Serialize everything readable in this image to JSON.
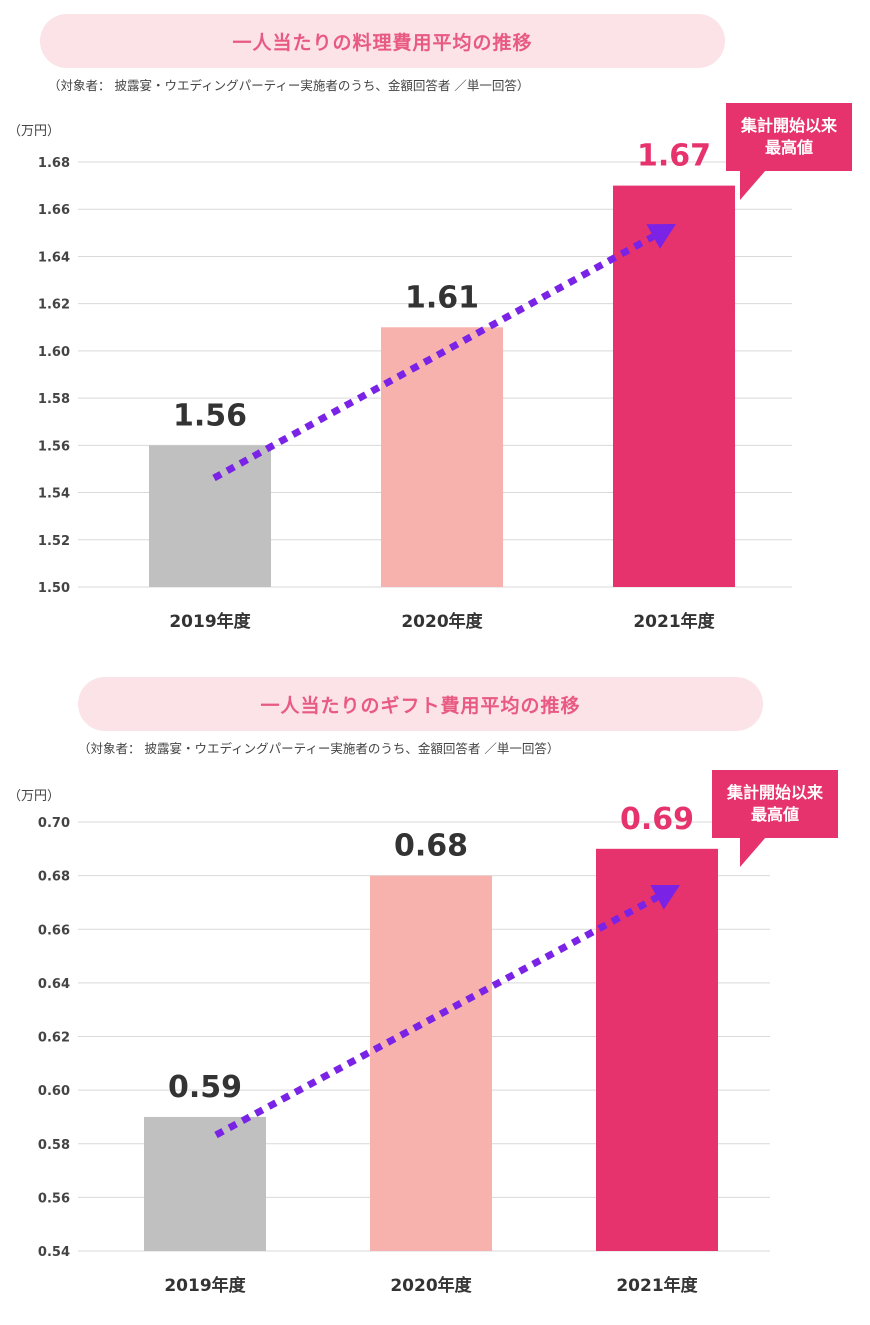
{
  "colors": {
    "title_pill": "#fbe3e7",
    "title_text": "#e85a82",
    "accent": "#e6336e",
    "bar_2019": "#c0c0c0",
    "bar_2020": "#f8b2ae",
    "bar_2021": "#e6336e",
    "arrow": "#7a22e6",
    "grid": "#d9d9d9"
  },
  "chart_data": [
    {
      "type": "bar",
      "title": "一人当たりの料理費用平均の推移",
      "subtitle": "（対象者： 披露宴・ウエディングパーティー実施者のうち、金額回答者 ／単一回答）",
      "unit": "（万円）",
      "categories": [
        "2019年度",
        "2020年度",
        "2021年度"
      ],
      "values": [
        1.56,
        1.61,
        1.67
      ],
      "value_labels": [
        "1.56",
        "1.61",
        "1.67"
      ],
      "ylim": [
        1.5,
        1.68
      ],
      "yticks": [
        "1.50",
        "1.52",
        "1.54",
        "1.56",
        "1.58",
        "1.60",
        "1.62",
        "1.64",
        "1.66",
        "1.68"
      ],
      "grid": true,
      "trend_arrow": true,
      "callout": "集計開始以来\n最高値"
    },
    {
      "type": "bar",
      "title": "一人当たりのギフト費用平均の推移",
      "subtitle": "（対象者： 披露宴・ウエディングパーティー実施者のうち、金額回答者 ／単一回答）",
      "unit": "（万円）",
      "categories": [
        "2019年度",
        "2020年度",
        "2021年度"
      ],
      "values": [
        0.59,
        0.68,
        0.69
      ],
      "value_labels": [
        "0.59",
        "0.68",
        "0.69"
      ],
      "ylim": [
        0.54,
        0.7
      ],
      "yticks": [
        "0.54",
        "0.56",
        "0.58",
        "0.60",
        "0.62",
        "0.64",
        "0.66",
        "0.68",
        "0.70"
      ],
      "grid": true,
      "trend_arrow": true,
      "callout": "集計開始以来\n最高値"
    }
  ]
}
